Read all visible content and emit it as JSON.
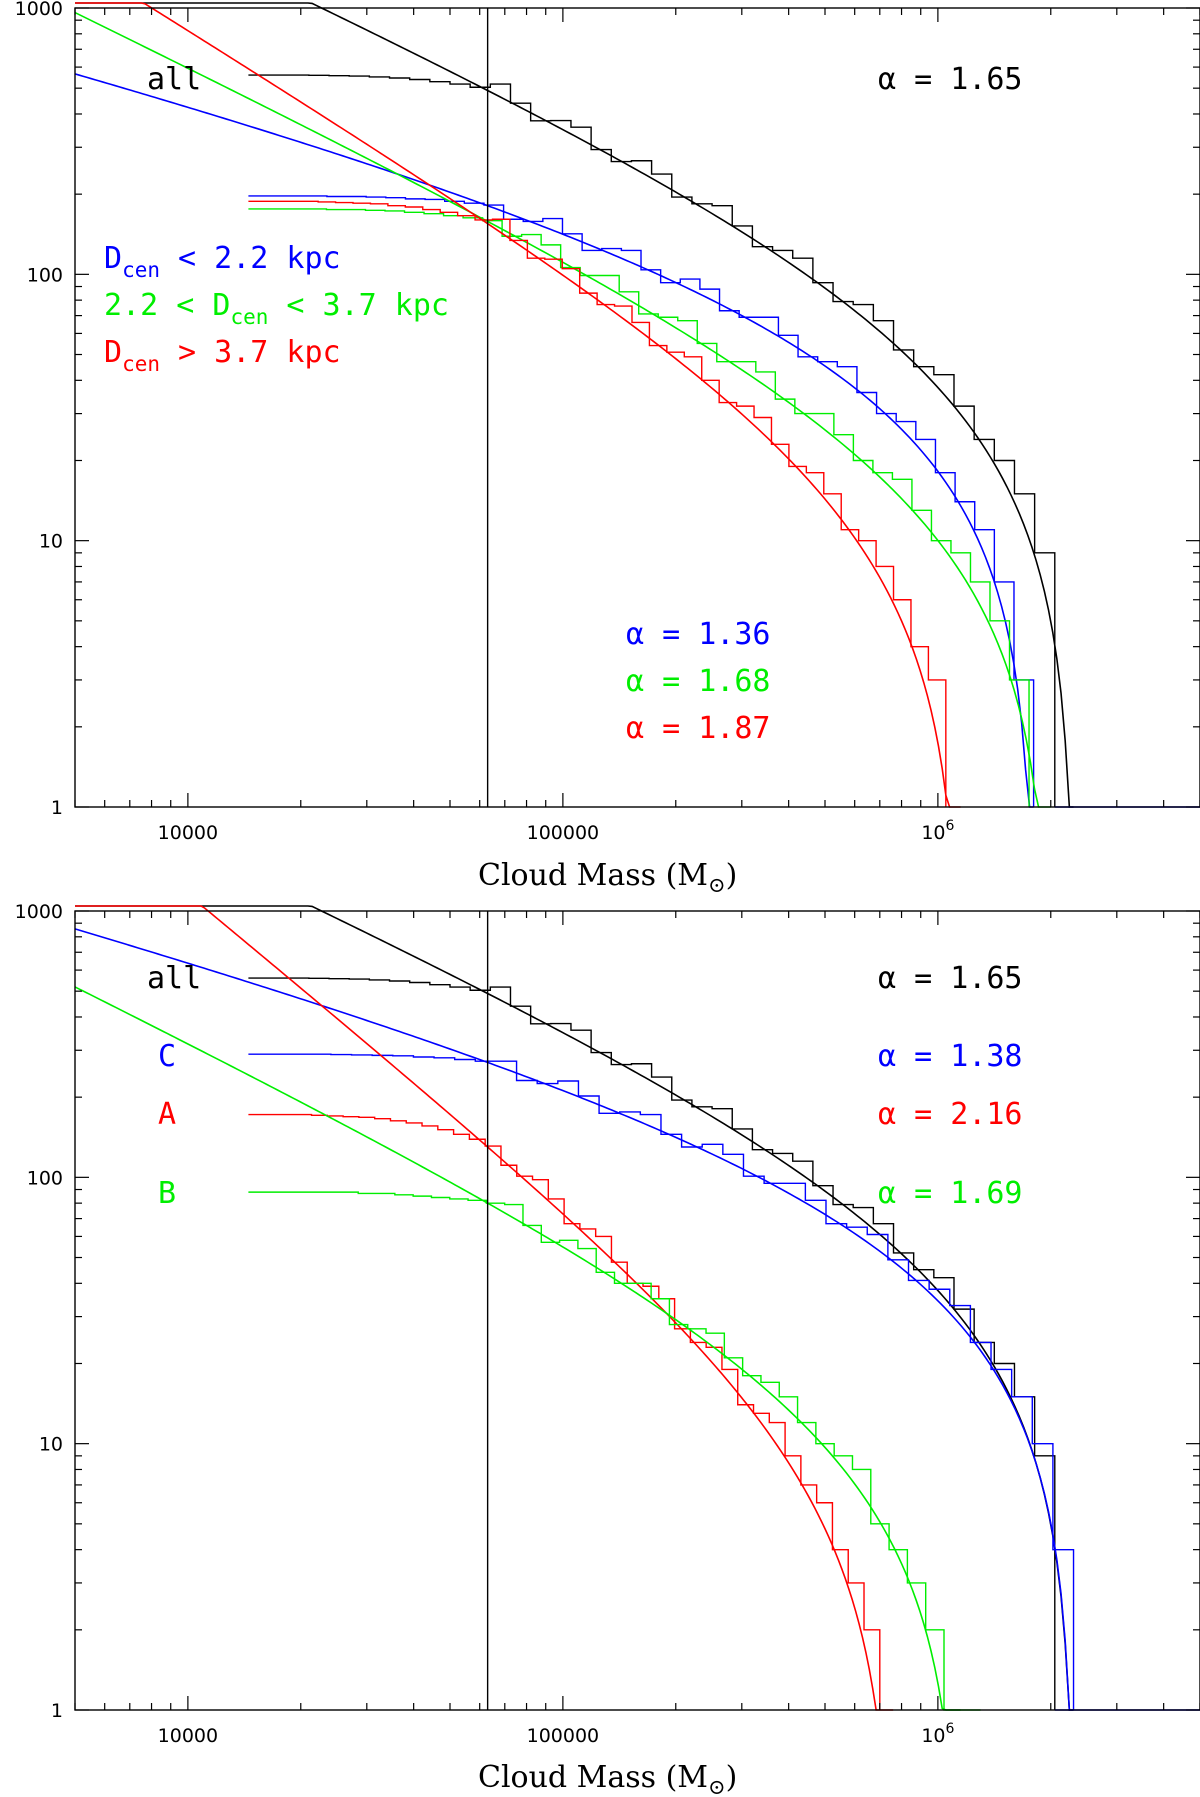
{
  "colors": {
    "all": "#000000",
    "blue": "#0000ff",
    "green": "#00ee00",
    "red": "#ff0000"
  },
  "chart_data": [
    {
      "type": "line",
      "id": "top",
      "xlabel": "Cloud Mass (M",
      "xlabel_unit_symbol": "⊙",
      "ylabel": "",
      "xscale": "log",
      "yscale": "log",
      "xlim": [
        5000,
        5000000
      ],
      "ylim": [
        1,
        1000
      ],
      "x_ticks": [
        {
          "value": 10000,
          "label": "10000"
        },
        {
          "value": 100000,
          "label": "100000"
        },
        {
          "value": 1000000,
          "label": "10",
          "exp": "6"
        }
      ],
      "y_ticks": [
        {
          "value": 1,
          "label": "1"
        },
        {
          "value": 10,
          "label": "10"
        },
        {
          "value": 100,
          "label": "100"
        },
        {
          "value": 1000,
          "label": "1000"
        }
      ],
      "completeness_limit": 63000,
      "series": [
        {
          "name": "all",
          "color_key": "all",
          "alpha": "1.65",
          "hist_start": 14500,
          "n_total": 560,
          "n_at_limit": 490,
          "fit": {
            "n0": 2300000,
            "m_max": 2300000,
            "gamma": 0.65
          },
          "cutoff": 2050000
        },
        {
          "name": "Dcen < 2.2 kpc",
          "color_key": "blue",
          "alpha": "1.36",
          "hist_start": 14500,
          "n_total": 197,
          "n_at_limit": 181,
          "fit": {
            "n0": 1800000,
            "m_max": 1800000,
            "gamma": 0.36
          },
          "cutoff": 1800000
        },
        {
          "name": "2.2 < Dcen < 3.7 kpc",
          "color_key": "green",
          "alpha": "1.68",
          "hist_start": 14500,
          "n_total": 176,
          "n_at_limit": 158,
          "fit": {
            "n0": 2000000,
            "m_max": 2000000,
            "gamma": 0.68
          },
          "cutoff": 1750000
        },
        {
          "name": "Dcen > 3.7 kpc",
          "color_key": "red",
          "alpha": "1.87",
          "hist_start": 14500,
          "n_total": 188,
          "n_at_limit": 155,
          "fit": {
            "n0": 1150000,
            "m_max": 1150000,
            "gamma": 0.87
          },
          "cutoff": 1050000
        }
      ],
      "labels": {
        "all": "all",
        "alpha_all": "α = 1.65",
        "alpha_blue": "α = 1.36",
        "alpha_green": "α = 1.68",
        "alpha_red": "α = 1.87",
        "legend_blue_pre": "D",
        "legend_blue_sub": "cen",
        "legend_blue_post": " < 2.2 kpc",
        "legend_green_pre": "2.2 < D",
        "legend_green_sub": "cen",
        "legend_green_post": " < 3.7 kpc",
        "legend_red_pre": "D",
        "legend_red_sub": "cen",
        "legend_red_post": " > 3.7 kpc"
      }
    },
    {
      "type": "line",
      "id": "bottom",
      "xlabel": "Cloud Mass (M",
      "xlabel_unit_symbol": "⊙",
      "ylabel": "",
      "xscale": "log",
      "yscale": "log",
      "xlim": [
        5000,
        5000000
      ],
      "ylim": [
        1,
        1000
      ],
      "x_ticks": [
        {
          "value": 10000,
          "label": "10000"
        },
        {
          "value": 100000,
          "label": "100000"
        },
        {
          "value": 1000000,
          "label": "10",
          "exp": "6"
        }
      ],
      "y_ticks": [
        {
          "value": 1,
          "label": "1"
        },
        {
          "value": 10,
          "label": "10"
        },
        {
          "value": 100,
          "label": "100"
        },
        {
          "value": 1000,
          "label": "1000"
        }
      ],
      "completeness_limit": 63000,
      "series": [
        {
          "name": "all",
          "color_key": "all",
          "alpha": "1.65",
          "hist_start": 14500,
          "n_total": 560,
          "n_at_limit": 490,
          "fit": {
            "n0": 2300000,
            "m_max": 2300000,
            "gamma": 0.65
          },
          "cutoff": 2050000
        },
        {
          "name": "C",
          "color_key": "blue",
          "alpha": "1.38",
          "hist_start": 14500,
          "n_total": 290,
          "n_at_limit": 270,
          "fit": {
            "n0": 4200000,
            "m_max": 2300000,
            "gamma": 0.38
          },
          "cutoff": 2300000
        },
        {
          "name": "A",
          "color_key": "red",
          "alpha": "2.16",
          "hist_start": 14500,
          "n_total": 172,
          "n_at_limit": 130,
          "fit": {
            "n0": 760000,
            "m_max": 760000,
            "gamma": 1.16
          },
          "cutoff": 700000
        },
        {
          "name": "B",
          "color_key": "green",
          "alpha": "1.69",
          "hist_start": 14500,
          "n_total": 88,
          "n_at_limit": 80,
          "fit": {
            "n0": 1450000,
            "m_max": 1150000,
            "gamma": 0.69
          },
          "cutoff": 1300000
        }
      ],
      "labels": {
        "all": "all",
        "C": "C",
        "A": "A",
        "B": "B",
        "alpha_all": "α = 1.65",
        "alpha_blue": "α = 1.38",
        "alpha_red": "α = 2.16",
        "alpha_green": "α = 1.69"
      }
    }
  ]
}
